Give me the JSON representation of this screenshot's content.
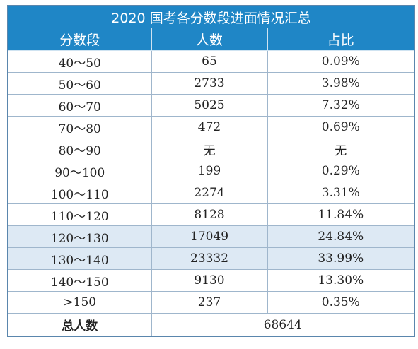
{
  "title": "2020 国考各分数段进面情况汇总",
  "headers": [
    "分数段",
    "人数",
    "占比"
  ],
  "rows": [
    {
      "range": "40～50",
      "count": "65",
      "pct": "0.09%"
    },
    {
      "range": "50～60",
      "count": "2733",
      "pct": "3.98%"
    },
    {
      "range": "60～70",
      "count": "5025",
      "pct": "7.32%"
    },
    {
      "range": "70～80",
      "count": "472",
      "pct": "0.69%"
    },
    {
      "range": "80～90",
      "count": "无",
      "pct": "无"
    },
    {
      "range": "90～100",
      "count": "199",
      "pct": "0.29%"
    },
    {
      "range": "100～110",
      "count": "2274",
      "pct": "3.31%"
    },
    {
      "range": "110～120",
      "count": "8128",
      "pct": "11.84%"
    },
    {
      "range": "120～130",
      "count": "17049",
      "pct": "24.84%"
    },
    {
      "range": "130～140",
      "count": "23332",
      "pct": "33.99%"
    },
    {
      "range": "140～150",
      "count": "9130",
      "pct": "13.30%"
    },
    {
      "range": ">150",
      "count": "237",
      "pct": "0.35%"
    }
  ],
  "total": {
    "label": "总人数",
    "value": "68644"
  },
  "colors": {
    "header_bg": "#1f86c6",
    "highlight_bg": "#dde9f4",
    "border": "#9fb6cc"
  }
}
